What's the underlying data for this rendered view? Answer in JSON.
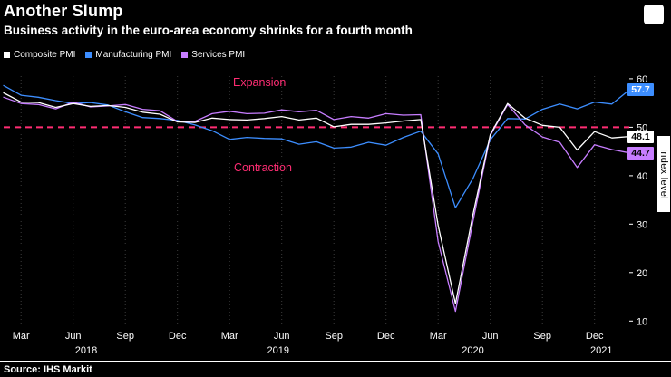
{
  "header": {
    "title": "Another Slump",
    "subtitle": "Business activity in the euro-area economy shrinks for a fourth month"
  },
  "legend": {
    "items": [
      {
        "label": "Composite PMI",
        "color": "#ffffff"
      },
      {
        "label": "Manufacturing PMI",
        "color": "#3d8eff"
      },
      {
        "label": "Services PMI",
        "color": "#c77dff"
      }
    ]
  },
  "annotations": {
    "expansion": "Expansion",
    "contraction": "Contraction",
    "threshold": 50,
    "threshold_color": "#ff2d73"
  },
  "axis": {
    "ylabel": "Index level",
    "yticks": [
      60,
      50,
      40,
      30,
      20,
      10
    ],
    "xticks": [
      {
        "i": 1,
        "label": "Mar"
      },
      {
        "i": 4,
        "label": "Jun"
      },
      {
        "i": 7,
        "label": "Sep"
      },
      {
        "i": 10,
        "label": "Dec"
      },
      {
        "i": 13,
        "label": "Mar"
      },
      {
        "i": 16,
        "label": "Jun"
      },
      {
        "i": 19,
        "label": "Sep"
      },
      {
        "i": 22,
        "label": "Dec"
      },
      {
        "i": 25,
        "label": "Mar"
      },
      {
        "i": 28,
        "label": "Jun"
      },
      {
        "i": 31,
        "label": "Sep"
      },
      {
        "i": 34,
        "label": "Dec"
      }
    ],
    "years": [
      {
        "i": 4.75,
        "label": "2018"
      },
      {
        "i": 15.8,
        "label": "2019"
      },
      {
        "i": 27.0,
        "label": "2020"
      },
      {
        "i": 34.4,
        "label": "2021"
      }
    ]
  },
  "end_labels": [
    {
      "value": "57.7",
      "bg": "#3d8eff",
      "fg": "#ffffff"
    },
    {
      "value": "48.1",
      "bg": "#ffffff",
      "fg": "#000000"
    },
    {
      "value": "44.7",
      "bg": "#c77dff",
      "fg": "#000000"
    }
  ],
  "source": "Source: IHS Markit",
  "chart_data": {
    "type": "line",
    "title": "Another Slump",
    "subtitle": "Business activity in the euro-area economy shrinks for a fourth month",
    "ylabel": "Index level",
    "ylim": [
      10,
      60
    ],
    "threshold": 50,
    "legend_position": "top-left",
    "grid": "vertical-dotted",
    "x": [
      "Feb 2018",
      "Mar 2018",
      "Apr 2018",
      "May 2018",
      "Jun 2018",
      "Jul 2018",
      "Aug 2018",
      "Sep 2018",
      "Oct 2018",
      "Nov 2018",
      "Dec 2018",
      "Jan 2019",
      "Feb 2019",
      "Mar 2019",
      "Apr 2019",
      "May 2019",
      "Jun 2019",
      "Jul 2019",
      "Aug 2019",
      "Sep 2019",
      "Oct 2019",
      "Nov 2019",
      "Dec 2019",
      "Jan 2020",
      "Feb 2020",
      "Mar 2020",
      "Apr 2020",
      "May 2020",
      "Jun 2020",
      "Jul 2020",
      "Aug 2020",
      "Sep 2020",
      "Oct 2020",
      "Nov 2020",
      "Dec 2020",
      "Jan 2021",
      "Feb 2021"
    ],
    "series": [
      {
        "name": "Composite PMI",
        "color": "#ffffff",
        "values": [
          57.1,
          55.2,
          55.1,
          54.1,
          54.9,
          54.3,
          54.5,
          54.1,
          53.1,
          52.7,
          51.1,
          51.0,
          51.9,
          51.6,
          51.5,
          51.8,
          52.2,
          51.5,
          51.9,
          50.1,
          50.6,
          50.6,
          50.9,
          51.3,
          51.6,
          29.7,
          13.6,
          31.9,
          48.5,
          54.9,
          51.9,
          50.4,
          50.0,
          45.3,
          49.1,
          47.8,
          48.1
        ]
      },
      {
        "name": "Manufacturing PMI",
        "color": "#3d8eff",
        "values": [
          58.6,
          56.6,
          56.2,
          55.5,
          54.9,
          55.1,
          54.6,
          53.2,
          52.0,
          51.8,
          51.4,
          50.5,
          49.3,
          47.5,
          47.9,
          47.7,
          47.6,
          46.5,
          47.0,
          45.7,
          45.9,
          46.9,
          46.3,
          47.9,
          49.2,
          44.5,
          33.4,
          39.4,
          47.4,
          51.8,
          51.7,
          53.7,
          54.8,
          53.8,
          55.2,
          54.8,
          57.7
        ]
      },
      {
        "name": "Services PMI",
        "color": "#c77dff",
        "values": [
          56.2,
          54.9,
          54.7,
          53.8,
          55.2,
          54.2,
          54.4,
          54.7,
          53.7,
          53.4,
          51.2,
          51.2,
          52.8,
          53.3,
          52.8,
          52.9,
          53.6,
          53.2,
          53.5,
          51.6,
          52.2,
          51.9,
          52.8,
          52.5,
          52.6,
          26.4,
          12.0,
          30.5,
          48.3,
          54.7,
          50.5,
          48.0,
          46.9,
          41.7,
          46.4,
          45.4,
          44.7
        ]
      }
    ]
  }
}
